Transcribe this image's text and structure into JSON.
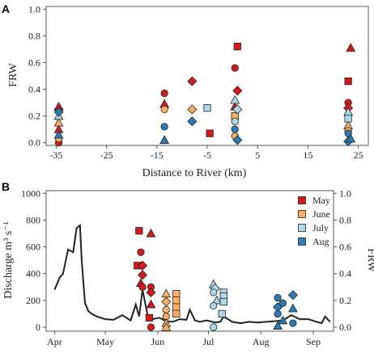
{
  "colors": {
    "May": "#d7191c",
    "June": "#fdae61",
    "July": "#abd9e9",
    "Aug": "#2c7bb6",
    "line": "#222222",
    "axis": "#555555"
  },
  "panel_labels": {
    "a": "A",
    "b": "B"
  },
  "legend": [
    "May",
    "June",
    "July",
    "Aug"
  ],
  "chart_data": [
    {
      "type": "scatter",
      "panel": "A",
      "xlabel": "Distance to River (km)",
      "ylabel": "FRW",
      "xlim": [
        -37,
        27
      ],
      "ylim": [
        -0.02,
        1.02
      ],
      "xticks": [
        -35,
        -25,
        -15,
        -5,
        5,
        15,
        25
      ],
      "yticks": [
        0.0,
        0.2,
        0.4,
        0.6,
        0.8,
        1.0
      ],
      "ytick_labels": [
        "0.0",
        "0.2",
        "0.4",
        "0.6",
        "0.8",
        "1.0"
      ],
      "grid": false,
      "series": [
        {
          "name": "May",
          "points": [
            {
              "x": -34.5,
              "y": 0.0,
              "shape": "circle"
            },
            {
              "x": -34.5,
              "y": 0.1,
              "shape": "triangle"
            },
            {
              "x": -34.5,
              "y": 0.25,
              "shape": "diamond"
            },
            {
              "x": -34.5,
              "y": 0.27,
              "shape": "triangle"
            },
            {
              "x": -13.5,
              "y": 0.37,
              "shape": "circle"
            },
            {
              "x": -13.5,
              "y": 0.29,
              "shape": "triangle"
            },
            {
              "x": -8.0,
              "y": 0.46,
              "shape": "diamond"
            },
            {
              "x": -4.5,
              "y": 0.07,
              "shape": "square"
            },
            {
              "x": 1.0,
              "y": 0.72,
              "shape": "square"
            },
            {
              "x": 0.5,
              "y": 0.56,
              "shape": "circle"
            },
            {
              "x": 1.0,
              "y": 0.39,
              "shape": "diamond"
            },
            {
              "x": 0.5,
              "y": 0.27,
              "shape": "triangle"
            },
            {
              "x": 23.0,
              "y": 0.46,
              "shape": "square"
            },
            {
              "x": 23.5,
              "y": 0.71,
              "shape": "triangle"
            },
            {
              "x": 23.0,
              "y": 0.3,
              "shape": "circle"
            },
            {
              "x": 23.0,
              "y": 0.26,
              "shape": "diamond"
            }
          ]
        },
        {
          "name": "June",
          "points": [
            {
              "x": -34.5,
              "y": 0.03,
              "shape": "circle"
            },
            {
              "x": -34.5,
              "y": 0.15,
              "shape": "triangle"
            },
            {
              "x": -13.5,
              "y": 0.25,
              "shape": "circle"
            },
            {
              "x": -8.0,
              "y": 0.25,
              "shape": "diamond"
            },
            {
              "x": 0.5,
              "y": 0.2,
              "shape": "square"
            },
            {
              "x": 0.5,
              "y": 0.05,
              "shape": "circle"
            },
            {
              "x": 23.0,
              "y": 0.13,
              "shape": "triangle"
            },
            {
              "x": 23.0,
              "y": 0.09,
              "shape": "circle"
            }
          ]
        },
        {
          "name": "July",
          "points": [
            {
              "x": -34.5,
              "y": 0.2,
              "shape": "triangle"
            },
            {
              "x": -5.0,
              "y": 0.26,
              "shape": "square"
            },
            {
              "x": 0.5,
              "y": 0.32,
              "shape": "triangle"
            },
            {
              "x": 1.0,
              "y": 0.25,
              "shape": "diamond"
            },
            {
              "x": 0.5,
              "y": 0.16,
              "shape": "circle"
            },
            {
              "x": 23.0,
              "y": 0.23,
              "shape": "triangle"
            },
            {
              "x": 23.0,
              "y": 0.18,
              "shape": "square"
            }
          ]
        },
        {
          "name": "Aug",
          "points": [
            {
              "x": -34.5,
              "y": 0.06,
              "shape": "triangle"
            },
            {
              "x": -34.5,
              "y": 0.23,
              "shape": "diamond"
            },
            {
              "x": -13.5,
              "y": 0.12,
              "shape": "circle"
            },
            {
              "x": -13.5,
              "y": 0.02,
              "shape": "triangle"
            },
            {
              "x": -8.0,
              "y": 0.16,
              "shape": "diamond"
            },
            {
              "x": 0.5,
              "y": 0.1,
              "shape": "circle"
            },
            {
              "x": 1.0,
              "y": 0.02,
              "shape": "diamond"
            },
            {
              "x": 23.0,
              "y": 0.07,
              "shape": "circle"
            },
            {
              "x": 23.0,
              "y": 0.01,
              "shape": "diamond"
            },
            {
              "x": 23.5,
              "y": 0.03,
              "shape": "triangle"
            }
          ]
        }
      ]
    },
    {
      "type": "line+scatter",
      "panel": "B",
      "ylabel_left": "Discharge m³ s⁻¹",
      "ylabel_right": "FRW",
      "xlim": [
        -5,
        165
      ],
      "ylim_left": [
        -30,
        1020
      ],
      "ylim_right": [
        -0.03,
        1.02
      ],
      "xticks": [
        0,
        30,
        61,
        91,
        122,
        153
      ],
      "xtick_labels": [
        "Apr",
        "May",
        "Jun",
        "Jul",
        "Aug",
        "Sep"
      ],
      "yticks_left": [
        0,
        200,
        400,
        600,
        800,
        1000
      ],
      "yticks_right": [
        0.0,
        0.2,
        0.4,
        0.6,
        0.8,
        1.0
      ],
      "yticks_right_labels": [
        "0.0",
        "0.2",
        "0.4",
        "0.6",
        "0.8",
        "1.0"
      ],
      "grid": false,
      "legend_position": "top-right",
      "discharge": {
        "day": [
          0,
          3,
          5,
          8,
          11,
          13,
          15,
          16,
          18,
          20,
          22,
          25,
          30,
          35,
          40,
          45,
          48,
          50,
          52,
          55,
          58,
          62,
          66,
          70,
          74,
          78,
          80,
          83,
          86,
          90,
          95,
          98,
          100,
          105,
          110,
          115,
          120,
          125,
          130,
          135,
          140,
          145,
          150,
          155,
          158,
          160,
          163
        ],
        "value": [
          280,
          370,
          400,
          580,
          560,
          740,
          760,
          500,
          180,
          120,
          100,
          80,
          60,
          55,
          90,
          50,
          170,
          80,
          280,
          90,
          60,
          70,
          45,
          40,
          60,
          55,
          130,
          50,
          40,
          50,
          35,
          40,
          80,
          40,
          30,
          40,
          35,
          40,
          45,
          50,
          90,
          60,
          60,
          40,
          30,
          80,
          40
        ]
      },
      "series": [
        {
          "name": "May",
          "points": [
            {
              "x": 50,
              "y": 0.72,
              "shape": "square"
            },
            {
              "x": 57,
              "y": 0.7,
              "shape": "triangle"
            },
            {
              "x": 51,
              "y": 0.56,
              "shape": "circle"
            },
            {
              "x": 49,
              "y": 0.46,
              "shape": "square"
            },
            {
              "x": 52,
              "y": 0.46,
              "shape": "diamond"
            },
            {
              "x": 52,
              "y": 0.39,
              "shape": "diamond"
            },
            {
              "x": 51,
              "y": 0.33,
              "shape": "triangle"
            },
            {
              "x": 52,
              "y": 0.3,
              "shape": "circle"
            },
            {
              "x": 57,
              "y": 0.3,
              "shape": "circle"
            },
            {
              "x": 57,
              "y": 0.26,
              "shape": "diamond"
            },
            {
              "x": 57,
              "y": 0.17,
              "shape": "triangle"
            },
            {
              "x": 56,
              "y": 0.07,
              "shape": "square"
            },
            {
              "x": 57,
              "y": 0.0,
              "shape": "circle"
            }
          ]
        },
        {
          "name": "June",
          "points": [
            {
              "x": 66,
              "y": 0.25,
              "shape": "triangle"
            },
            {
              "x": 72,
              "y": 0.25,
              "shape": "square"
            },
            {
              "x": 66,
              "y": 0.19,
              "shape": "diamond"
            },
            {
              "x": 72,
              "y": 0.2,
              "shape": "square"
            },
            {
              "x": 72,
              "y": 0.15,
              "shape": "square"
            },
            {
              "x": 66,
              "y": 0.13,
              "shape": "circle"
            },
            {
              "x": 72,
              "y": 0.1,
              "shape": "square"
            },
            {
              "x": 66,
              "y": 0.08,
              "shape": "circle"
            },
            {
              "x": 66,
              "y": 0.03,
              "shape": "triangle"
            },
            {
              "x": 66,
              "y": 0.0,
              "shape": "triangle"
            }
          ]
        },
        {
          "name": "July",
          "points": [
            {
              "x": 94,
              "y": 0.32,
              "shape": "triangle"
            },
            {
              "x": 95,
              "y": 0.29,
              "shape": "diamond"
            },
            {
              "x": 94,
              "y": 0.26,
              "shape": "circle"
            },
            {
              "x": 100,
              "y": 0.26,
              "shape": "square"
            },
            {
              "x": 100,
              "y": 0.23,
              "shape": "square"
            },
            {
              "x": 96,
              "y": 0.2,
              "shape": "triangle"
            },
            {
              "x": 100,
              "y": 0.19,
              "shape": "square"
            },
            {
              "x": 94,
              "y": 0.16,
              "shape": "circle"
            },
            {
              "x": 99,
              "y": 0.1,
              "shape": "square"
            },
            {
              "x": 94,
              "y": 0.0,
              "shape": "circle"
            }
          ]
        },
        {
          "name": "Aug",
          "points": [
            {
              "x": 132,
              "y": 0.22,
              "shape": "circle"
            },
            {
              "x": 135,
              "y": 0.18,
              "shape": "circle"
            },
            {
              "x": 141,
              "y": 0.24,
              "shape": "diamond"
            },
            {
              "x": 141,
              "y": 0.14,
              "shape": "triangle"
            },
            {
              "x": 132,
              "y": 0.15,
              "shape": "diamond"
            },
            {
              "x": 132,
              "y": 0.1,
              "shape": "circle"
            },
            {
              "x": 135,
              "y": 0.05,
              "shape": "triangle"
            },
            {
              "x": 141,
              "y": 0.03,
              "shape": "circle"
            },
            {
              "x": 132,
              "y": 0.01,
              "shape": "triangle"
            }
          ]
        }
      ]
    }
  ]
}
